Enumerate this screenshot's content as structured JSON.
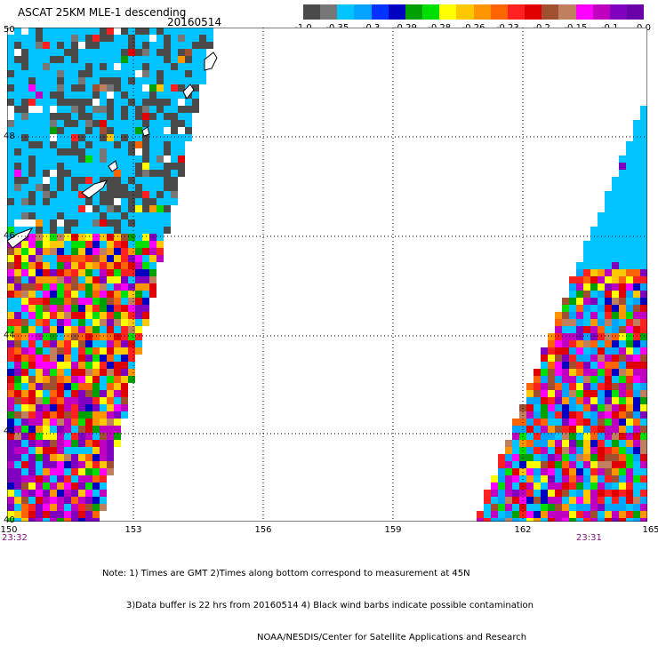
{
  "header": {
    "title": "ASCAT 25KM MLE-1 descending",
    "date": "20160514"
  },
  "colorbar": {
    "colors": [
      "#4a4a4a",
      "#777777",
      "#00c4ff",
      "#00a4ff",
      "#0033ff",
      "#0000c0",
      "#00a000",
      "#00e000",
      "#ffff00",
      "#ffc800",
      "#ff9600",
      "#ff6400",
      "#ff2020",
      "#e00000",
      "#a05030",
      "#c08060",
      "#ff00ff",
      "#c000c0",
      "#8000c0",
      "#6a00a8"
    ],
    "labels": [
      "-1.0",
      "-0.35",
      "-0.3",
      "-0.29",
      "-0.28",
      "-0.26",
      "-0.23",
      "-0.2",
      "-0.15",
      "-0.1",
      "0.0"
    ]
  },
  "map": {
    "lat_labels": [
      "50",
      "48",
      "46",
      "44",
      "42",
      "40"
    ],
    "lon_labels": [
      "150",
      "153",
      "156",
      "159",
      "162",
      "165"
    ],
    "time_left": "23:32",
    "time_right": "23:31"
  },
  "notes": {
    "line1": "Note: 1) Times are GMT 2)Times along bottom correspond to measurement at 45N",
    "line2": "3)Data buffer is 22 hrs from 20160514 4) Black wind barbs indicate possible contamination",
    "line3": "NOAA/NESDIS/Center for Satellite Applications and Research"
  }
}
